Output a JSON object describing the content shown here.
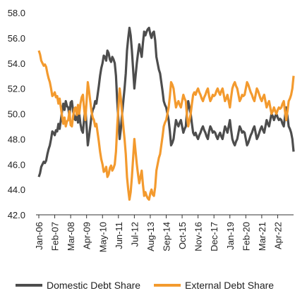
{
  "chart_data": {
    "type": "line",
    "categories": [
      "Jan-06",
      null,
      null,
      null,
      null,
      null,
      null,
      null,
      null,
      null,
      null,
      null,
      null,
      "Feb-07",
      null,
      null,
      null,
      null,
      null,
      null,
      null,
      null,
      null,
      null,
      null,
      null,
      "Mar-08",
      null,
      null,
      null,
      null,
      null,
      null,
      null,
      null,
      null,
      null,
      null,
      null,
      "Apr-09",
      null,
      null,
      null,
      null,
      null,
      null,
      null,
      null,
      null,
      null,
      null,
      null,
      "May-10",
      null,
      null,
      null,
      null,
      null,
      null,
      null,
      null,
      null,
      null,
      null,
      null,
      "Jun-11",
      null,
      null,
      null,
      null,
      null,
      null,
      null,
      null,
      null,
      null,
      null,
      null,
      "Jul-12",
      null,
      null,
      null,
      null,
      null,
      null,
      null,
      null,
      null,
      null,
      null,
      null,
      "Aug-13",
      null,
      null,
      null,
      null,
      null,
      null,
      null,
      null,
      null,
      null,
      null,
      null,
      "Sep-14",
      null,
      null,
      null,
      null,
      null,
      null,
      null,
      null,
      null,
      null,
      null,
      null,
      "Oct-15",
      null,
      null,
      null,
      null,
      null,
      null,
      null,
      null,
      null,
      null,
      null,
      null,
      "Nov-16",
      null,
      null,
      null,
      null,
      null,
      null,
      null,
      null,
      null,
      null,
      null,
      null,
      "Dec-17",
      null,
      null,
      null,
      null,
      null,
      null,
      null,
      null,
      null,
      null,
      null,
      null,
      "Jan-19",
      null,
      null,
      null,
      null,
      null,
      null,
      null,
      null,
      null,
      null,
      null,
      null,
      "Feb-20",
      null,
      null,
      null,
      null,
      null,
      null,
      null,
      null,
      null,
      null,
      null,
      null,
      "Mar-21",
      null,
      null,
      null,
      null,
      null,
      null,
      null,
      null,
      null,
      null,
      null,
      null,
      "Apr-22",
      null,
      null,
      null,
      null,
      null,
      null,
      null,
      null,
      null,
      null,
      null,
      null,
      null
    ],
    "series": [
      {
        "name": "Domestic Debt Share",
        "color": "#4d4d4d",
        "values": [
          45.0,
          45.3,
          45.8,
          46.0,
          46.2,
          46.1,
          46.3,
          46.8,
          47.2,
          47.5,
          48.0,
          48.6,
          48.5,
          48.3,
          48.7,
          48.6,
          49.2,
          48.8,
          49.5,
          50.2,
          50.8,
          50.3,
          51.0,
          50.6,
          50.5,
          49.8,
          50.9,
          51.0,
          50.2,
          49.6,
          49.5,
          50.1,
          49.3,
          50.0,
          49.2,
          48.7,
          48.5,
          49.6,
          50.5,
          49.0,
          47.5,
          48.2,
          49.0,
          49.8,
          50.3,
          50.5,
          51.0,
          50.8,
          51.5,
          52.2,
          53.0,
          53.6,
          54.0,
          54.6,
          54.5,
          54.2,
          55.0,
          54.8,
          54.3,
          54.1,
          54.5,
          54.3,
          54.0,
          53.0,
          51.0,
          49.5,
          48.0,
          48.8,
          50.0,
          51.0,
          52.0,
          53.2,
          55.0,
          56.0,
          56.8,
          56.2,
          55.0,
          53.5,
          52.0,
          53.0,
          54.0,
          54.8,
          55.5,
          55.0,
          54.5,
          55.6,
          56.5,
          56.2,
          56.5,
          56.7,
          56.8,
          56.3,
          56.0,
          56.4,
          56.5,
          55.8,
          54.5,
          54.0,
          53.5,
          53.2,
          52.5,
          51.8,
          51.0,
          50.7,
          50.5,
          50.0,
          49.5,
          48.6,
          47.5,
          47.7,
          48.0,
          48.8,
          49.5,
          49.2,
          49.0,
          49.3,
          49.5,
          49.0,
          48.5,
          48.8,
          49.0,
          50.2,
          51.0,
          50.5,
          50.0,
          49.2,
          48.5,
          48.3,
          48.5,
          48.2,
          48.0,
          48.3,
          48.5,
          48.8,
          49.0,
          48.7,
          48.5,
          48.2,
          48.0,
          48.6,
          49.0,
          48.8,
          48.5,
          48.6,
          48.5,
          48.2,
          48.0,
          48.3,
          48.5,
          48.2,
          48.0,
          48.5,
          49.0,
          48.8,
          48.5,
          49.0,
          49.5,
          48.7,
          48.0,
          47.7,
          47.5,
          47.8,
          48.0,
          48.5,
          49.0,
          48.8,
          48.5,
          48.6,
          48.5,
          48.0,
          47.5,
          47.7,
          48.0,
          48.3,
          48.5,
          48.8,
          49.0,
          48.5,
          48.0,
          48.2,
          48.5,
          48.8,
          49.0,
          48.7,
          48.5,
          49.0,
          49.5,
          49.2,
          49.0,
          49.5,
          50.0,
          49.8,
          49.5,
          49.8,
          50.0,
          49.7,
          49.5,
          49.6,
          49.5,
          49.2,
          49.0,
          49.8,
          50.5,
          49.8,
          49.0,
          48.8,
          48.5,
          48.0,
          47.0
        ]
      },
      {
        "name": "External Debt Share",
        "color": "#f39a2e",
        "values": [
          55.0,
          54.7,
          54.2,
          54.0,
          53.8,
          53.9,
          53.7,
          53.2,
          52.8,
          52.5,
          52.0,
          51.4,
          51.5,
          51.7,
          51.3,
          51.4,
          50.8,
          51.2,
          50.5,
          49.8,
          49.2,
          49.7,
          49.0,
          49.4,
          49.5,
          50.2,
          49.1,
          49.0,
          49.8,
          50.4,
          50.5,
          49.9,
          50.7,
          50.0,
          50.8,
          51.3,
          51.5,
          50.4,
          49.5,
          51.0,
          52.5,
          51.8,
          51.0,
          50.2,
          49.7,
          49.5,
          49.0,
          49.2,
          48.5,
          47.8,
          47.0,
          46.4,
          46.0,
          45.4,
          45.5,
          45.8,
          45.0,
          45.2,
          45.7,
          45.9,
          45.5,
          45.7,
          46.0,
          47.0,
          49.0,
          50.5,
          52.0,
          51.2,
          50.0,
          49.0,
          48.0,
          46.8,
          45.0,
          44.0,
          43.2,
          43.8,
          45.0,
          46.5,
          48.0,
          47.0,
          46.0,
          45.2,
          44.5,
          45.0,
          45.5,
          44.4,
          43.5,
          43.8,
          43.5,
          43.3,
          43.2,
          43.7,
          44.0,
          43.6,
          43.5,
          44.2,
          45.5,
          46.0,
          46.5,
          46.8,
          47.5,
          48.2,
          49.0,
          49.3,
          49.5,
          50.0,
          50.5,
          51.4,
          52.5,
          52.3,
          52.0,
          51.2,
          50.5,
          50.8,
          51.0,
          50.7,
          50.5,
          51.0,
          51.5,
          51.2,
          51.0,
          49.8,
          49.0,
          49.5,
          50.0,
          50.8,
          51.5,
          51.7,
          51.5,
          51.8,
          52.0,
          51.7,
          51.5,
          51.2,
          51.0,
          51.3,
          51.5,
          51.8,
          52.0,
          51.4,
          51.0,
          51.2,
          51.5,
          51.4,
          51.5,
          51.8,
          52.0,
          51.7,
          51.5,
          51.8,
          52.0,
          51.5,
          51.0,
          51.2,
          51.5,
          51.0,
          50.5,
          51.3,
          52.0,
          52.3,
          52.5,
          52.2,
          52.0,
          51.5,
          51.0,
          51.2,
          51.5,
          51.4,
          51.5,
          52.0,
          52.5,
          52.3,
          52.0,
          51.7,
          51.5,
          51.2,
          51.0,
          51.5,
          52.0,
          51.8,
          51.5,
          51.2,
          51.0,
          51.3,
          51.5,
          51.0,
          50.5,
          50.8,
          51.0,
          50.5,
          50.0,
          50.2,
          50.5,
          50.2,
          50.0,
          50.3,
          50.5,
          50.4,
          50.5,
          50.8,
          51.0,
          50.2,
          49.5,
          50.2,
          51.0,
          51.2,
          51.5,
          52.0,
          53.0
        ]
      }
    ],
    "ylim": [
      42,
      58
    ],
    "yticks": [
      {
        "value": 42,
        "label": "42.0"
      },
      {
        "value": 44,
        "label": "44.0"
      },
      {
        "value": 46,
        "label": "46.0"
      },
      {
        "value": 48,
        "label": "48.0"
      },
      {
        "value": 50,
        "label": "50.0"
      },
      {
        "value": 52,
        "label": "52.0"
      },
      {
        "value": 54,
        "label": "54.0"
      },
      {
        "value": 56,
        "label": "56.0"
      },
      {
        "value": 58,
        "label": "58.0"
      }
    ],
    "grid": false,
    "legend": "bottom"
  }
}
